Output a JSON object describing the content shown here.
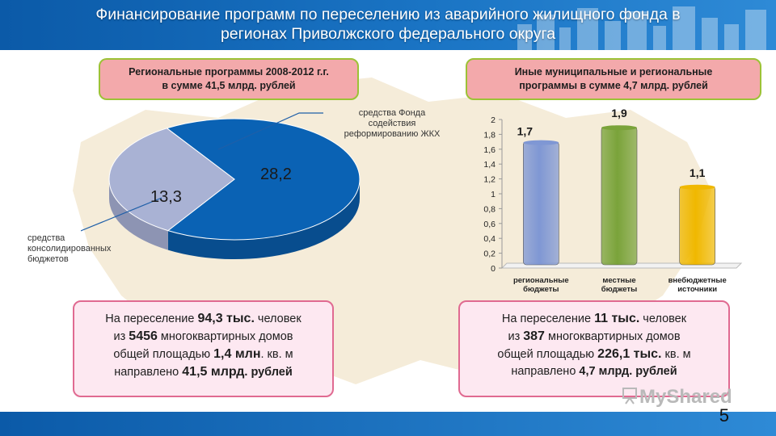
{
  "header": {
    "line1": "Финансирование программ по  переселению из аварийного жилищного фонда в",
    "line2": "регионах Приволжского федерального округа"
  },
  "left_box": {
    "line1": "Региональные программы 2008-2012 г.г.",
    "line2": "в сумме 41,5 млрд. рублей"
  },
  "right_box": {
    "line1": "Иные  муниципальные и региональные",
    "line2": "программы  в сумме 4,7 млрд. рублей"
  },
  "pie": {
    "label_fund": [
      "средства Фонда",
      "содействия",
      "реформированию ЖКХ"
    ],
    "label_budget": [
      "средства",
      "консолидированных",
      "бюджетов"
    ],
    "value_fund": "28,2",
    "value_budget": "13,3"
  },
  "left_info": {
    "l1a": "На переселение  ",
    "l1b": "94,3 тыс.",
    "l1c": " человек",
    "l2a": "из ",
    "l2b": "5456",
    "l2c": " многоквартирных  домов",
    "l3a": "общей площадью  ",
    "l3b": "1,4 млн",
    "l3c": ". кв. м",
    "l4a": "направлено  ",
    "l4b": "41,5 млрд",
    "l4c": ". рублей"
  },
  "right_info": {
    "l1a": "На переселение  ",
    "l1b": "11 тыс.",
    "l1c": " человек",
    "l2a": "из ",
    "l2b": "387",
    "l2c": " многоквартирных  домов",
    "l3a": "общей площадью  ",
    "l3b": "226,1 тыс.",
    "l3c": " кв. м",
    "l4a": "направлено  ",
    "l4b": "4,7 млрд. рублей",
    "l4c": ""
  },
  "page_number": "5",
  "logo_text": "MyShared",
  "colors": {
    "header_blue": "#0b5aa8",
    "pie_fund": "#0a62b4",
    "pie_budget": "#a9b2d4",
    "bar_regional": "#7f97d4",
    "bar_local": "#7aa33a",
    "bar_extrabudget": "#f0b800"
  },
  "chart_data": [
    {
      "type": "pie",
      "categories": [
        "средства Фонда содействия реформированию ЖКХ",
        "средства консолидированных бюджетов"
      ],
      "values": [
        28.2,
        13.3
      ],
      "data_labels": [
        "28,2",
        "13,3"
      ]
    },
    {
      "type": "bar",
      "categories": [
        "региональные бюджеты",
        "местные бюджеты",
        "внебюджетные источники"
      ],
      "values": [
        1.7,
        1.9,
        1.1
      ],
      "data_labels": [
        "1,7",
        "1,9",
        "1,1"
      ],
      "ylim": [
        0,
        2
      ],
      "yticks": [
        "0",
        "0,2",
        "0,4",
        "0,6",
        "0,8",
        "1",
        "1,2",
        "1,4",
        "1,6",
        "1,8",
        "2"
      ],
      "grid": false
    }
  ]
}
